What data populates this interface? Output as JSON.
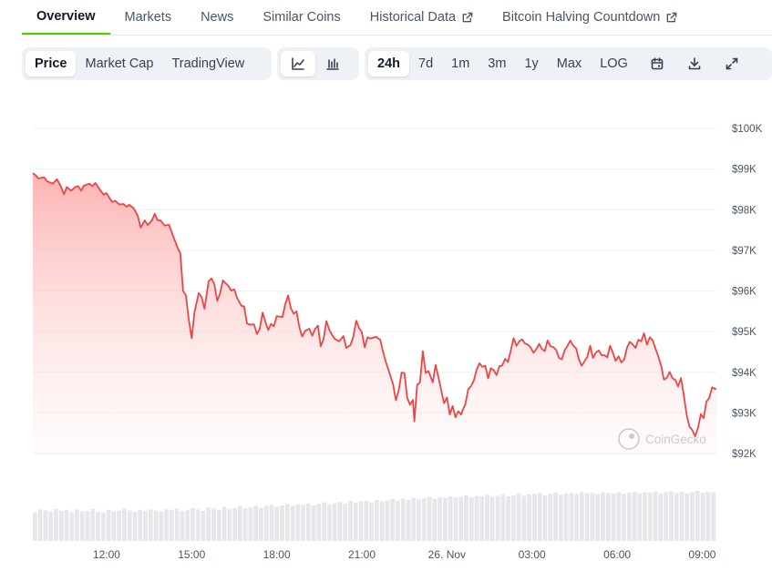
{
  "tabs": [
    {
      "label": "Overview",
      "active": true,
      "external": false
    },
    {
      "label": "Markets",
      "active": false,
      "external": false
    },
    {
      "label": "News",
      "active": false,
      "external": false
    },
    {
      "label": "Similar Coins",
      "active": false,
      "external": false
    },
    {
      "label": "Historical Data",
      "active": false,
      "external": true
    },
    {
      "label": "Bitcoin Halving Countdown",
      "active": false,
      "external": true
    }
  ],
  "toolbar": {
    "metric_buttons": [
      {
        "label": "Price",
        "active": true
      },
      {
        "label": "Market Cap",
        "active": false
      },
      {
        "label": "TradingView",
        "active": false
      }
    ],
    "chart_type_icons": [
      "line-chart-icon",
      "candlestick-chart-icon"
    ],
    "active_chart_type": "line-chart-icon",
    "range_buttons": [
      {
        "label": "24h",
        "active": true
      },
      {
        "label": "7d",
        "active": false
      },
      {
        "label": "1m",
        "active": false
      },
      {
        "label": "3m",
        "active": false
      },
      {
        "label": "1y",
        "active": false
      },
      {
        "label": "Max",
        "active": false
      },
      {
        "label": "LOG",
        "active": false
      }
    ],
    "action_icons": [
      "calendar-icon",
      "download-icon",
      "expand-icon"
    ]
  },
  "watermark": "CoinGecko",
  "colors": {
    "accent": "#4bcc00",
    "line": "#ef4444",
    "area": "#fecaca",
    "volume": "#e5e7eb"
  },
  "chart_data": {
    "type": "area",
    "title": "",
    "xlabel": "",
    "ylabel": "",
    "ylim": [
      91900,
      100200
    ],
    "y_ticks": [
      92000,
      93000,
      94000,
      95000,
      96000,
      97000,
      98000,
      99000,
      100000
    ],
    "y_tick_labels": [
      "$92K",
      "$93K",
      "$94K",
      "$95K",
      "$96K",
      "$97K",
      "$98K",
      "$99K",
      "$100K"
    ],
    "x_range": [
      9.4,
      33.5
    ],
    "x_ticks": [
      12,
      15,
      18,
      21,
      24,
      27,
      30,
      33
    ],
    "x_tick_labels": [
      "12:00",
      "15:00",
      "18:00",
      "21:00",
      "26. Nov",
      "03:00",
      "06:00",
      "09:00"
    ],
    "y_axis_position": "right",
    "grid": true,
    "series": [
      {
        "values": [
          [
            9.4,
            98900
          ],
          [
            9.5,
            98850
          ],
          [
            9.6,
            98770
          ],
          [
            9.8,
            98800
          ],
          [
            9.9,
            98700
          ],
          [
            10.1,
            98640
          ],
          [
            10.25,
            98750
          ],
          [
            10.4,
            98560
          ],
          [
            10.5,
            98380
          ],
          [
            10.6,
            98560
          ],
          [
            10.75,
            98470
          ],
          [
            10.9,
            98560
          ],
          [
            11.0,
            98580
          ],
          [
            11.1,
            98470
          ],
          [
            11.2,
            98590
          ],
          [
            11.4,
            98640
          ],
          [
            11.5,
            98580
          ],
          [
            11.6,
            98660
          ],
          [
            11.8,
            98460
          ],
          [
            11.9,
            98370
          ],
          [
            12.0,
            98410
          ],
          [
            12.1,
            98290
          ],
          [
            12.2,
            98190
          ],
          [
            12.3,
            98220
          ],
          [
            12.45,
            98130
          ],
          [
            12.6,
            98140
          ],
          [
            12.7,
            98070
          ],
          [
            12.8,
            98120
          ],
          [
            12.95,
            98040
          ],
          [
            13.1,
            97850
          ],
          [
            13.2,
            97560
          ],
          [
            13.35,
            97740
          ],
          [
            13.45,
            97620
          ],
          [
            13.6,
            97740
          ],
          [
            13.7,
            97900
          ],
          [
            13.8,
            97740
          ],
          [
            13.9,
            97740
          ],
          [
            14.05,
            97610
          ],
          [
            14.2,
            97630
          ],
          [
            14.3,
            97440
          ],
          [
            14.5,
            97070
          ],
          [
            14.6,
            96930
          ],
          [
            14.7,
            96000
          ],
          [
            14.8,
            95890
          ],
          [
            14.9,
            95280
          ],
          [
            15.0,
            94840
          ],
          [
            15.1,
            95480
          ],
          [
            15.25,
            95950
          ],
          [
            15.35,
            95850
          ],
          [
            15.45,
            95560
          ],
          [
            15.6,
            96240
          ],
          [
            15.7,
            96310
          ],
          [
            15.8,
            96160
          ],
          [
            15.9,
            95760
          ],
          [
            16.0,
            95940
          ],
          [
            16.1,
            96260
          ],
          [
            16.3,
            96120
          ],
          [
            16.4,
            96010
          ],
          [
            16.5,
            96040
          ],
          [
            16.6,
            95830
          ],
          [
            16.75,
            95640
          ],
          [
            16.85,
            95620
          ],
          [
            16.95,
            95200
          ],
          [
            17.05,
            95170
          ],
          [
            17.2,
            95180
          ],
          [
            17.3,
            94940
          ],
          [
            17.4,
            95070
          ],
          [
            17.5,
            95470
          ],
          [
            17.6,
            95240
          ],
          [
            17.7,
            95040
          ],
          [
            17.8,
            95190
          ],
          [
            17.9,
            95130
          ],
          [
            18.0,
            95380
          ],
          [
            18.2,
            95360
          ],
          [
            18.3,
            95680
          ],
          [
            18.4,
            95890
          ],
          [
            18.5,
            95570
          ],
          [
            18.6,
            95440
          ],
          [
            18.7,
            95500
          ],
          [
            18.8,
            95100
          ],
          [
            18.9,
            94880
          ],
          [
            19.0,
            95020
          ],
          [
            19.15,
            95070
          ],
          [
            19.25,
            94900
          ],
          [
            19.35,
            95060
          ],
          [
            19.45,
            95150
          ],
          [
            19.55,
            94640
          ],
          [
            19.65,
            94820
          ],
          [
            19.75,
            95260
          ],
          [
            19.85,
            95050
          ],
          [
            19.95,
            94920
          ],
          [
            20.05,
            94820
          ],
          [
            20.2,
            94760
          ],
          [
            20.35,
            94890
          ],
          [
            20.45,
            94600
          ],
          [
            20.6,
            94670
          ],
          [
            20.7,
            94880
          ],
          [
            20.8,
            95270
          ],
          [
            20.9,
            95090
          ],
          [
            21.0,
            94990
          ],
          [
            21.1,
            94610
          ],
          [
            21.2,
            94860
          ],
          [
            21.3,
            94830
          ],
          [
            21.5,
            94870
          ],
          [
            21.65,
            94800
          ],
          [
            21.75,
            94500
          ],
          [
            21.85,
            94250
          ],
          [
            21.95,
            94030
          ],
          [
            22.1,
            93710
          ],
          [
            22.2,
            93310
          ],
          [
            22.3,
            93560
          ],
          [
            22.4,
            93990
          ],
          [
            22.5,
            93980
          ],
          [
            22.6,
            93370
          ],
          [
            22.7,
            93200
          ],
          [
            22.8,
            93320
          ],
          [
            22.85,
            92790
          ],
          [
            22.95,
            93690
          ],
          [
            23.05,
            93750
          ],
          [
            23.15,
            94520
          ],
          [
            23.25,
            93980
          ],
          [
            23.35,
            94030
          ],
          [
            23.5,
            93750
          ],
          [
            23.6,
            94180
          ],
          [
            23.7,
            93880
          ],
          [
            23.8,
            93550
          ],
          [
            23.9,
            93240
          ],
          [
            24.0,
            93380
          ],
          [
            24.1,
            92960
          ],
          [
            24.2,
            93170
          ],
          [
            24.3,
            92890
          ],
          [
            24.4,
            93040
          ],
          [
            24.5,
            92960
          ],
          [
            24.55,
            93060
          ],
          [
            24.65,
            93220
          ],
          [
            24.75,
            93580
          ],
          [
            24.85,
            93660
          ],
          [
            24.95,
            93800
          ],
          [
            25.05,
            94070
          ],
          [
            25.15,
            94220
          ],
          [
            25.25,
            94130
          ],
          [
            25.35,
            94160
          ],
          [
            25.45,
            93850
          ],
          [
            25.55,
            94100
          ],
          [
            25.65,
            94050
          ],
          [
            25.75,
            93930
          ],
          [
            25.85,
            94150
          ],
          [
            25.95,
            94170
          ],
          [
            26.05,
            94330
          ],
          [
            26.15,
            94250
          ],
          [
            26.25,
            94540
          ],
          [
            26.35,
            94840
          ],
          [
            26.45,
            94650
          ],
          [
            26.55,
            94760
          ],
          [
            26.65,
            94810
          ],
          [
            26.75,
            94710
          ],
          [
            26.85,
            94680
          ],
          [
            26.95,
            94610
          ],
          [
            27.05,
            94480
          ],
          [
            27.15,
            94570
          ],
          [
            27.25,
            94700
          ],
          [
            27.35,
            94570
          ],
          [
            27.45,
            94520
          ],
          [
            27.55,
            94780
          ],
          [
            27.65,
            94640
          ],
          [
            27.75,
            94620
          ],
          [
            27.85,
            94550
          ],
          [
            27.95,
            94350
          ],
          [
            28.05,
            94320
          ],
          [
            28.15,
            94540
          ],
          [
            28.25,
            94650
          ],
          [
            28.35,
            94780
          ],
          [
            28.45,
            94660
          ],
          [
            28.55,
            94590
          ],
          [
            28.65,
            94320
          ],
          [
            28.75,
            94160
          ],
          [
            28.85,
            94270
          ],
          [
            28.95,
            94380
          ],
          [
            29.05,
            94650
          ],
          [
            29.15,
            94350
          ],
          [
            29.25,
            94480
          ],
          [
            29.35,
            94540
          ],
          [
            29.45,
            94420
          ],
          [
            29.55,
            94420
          ],
          [
            29.65,
            94370
          ],
          [
            29.75,
            94650
          ],
          [
            29.85,
            94480
          ],
          [
            29.95,
            94280
          ],
          [
            30.05,
            94390
          ],
          [
            30.15,
            94240
          ],
          [
            30.25,
            94320
          ],
          [
            30.35,
            94610
          ],
          [
            30.45,
            94750
          ],
          [
            30.55,
            94680
          ],
          [
            30.65,
            94600
          ],
          [
            30.75,
            94800
          ],
          [
            30.85,
            94760
          ],
          [
            30.95,
            94960
          ],
          [
            31.05,
            94680
          ],
          [
            31.15,
            94860
          ],
          [
            31.25,
            94790
          ],
          [
            31.35,
            94590
          ],
          [
            31.45,
            94390
          ],
          [
            31.55,
            94170
          ],
          [
            31.65,
            93820
          ],
          [
            31.75,
            93860
          ],
          [
            31.85,
            94010
          ],
          [
            31.95,
            93850
          ],
          [
            32.05,
            93810
          ],
          [
            32.15,
            93650
          ],
          [
            32.25,
            93860
          ],
          [
            32.35,
            93440
          ],
          [
            32.45,
            92960
          ],
          [
            32.55,
            92660
          ],
          [
            32.65,
            92580
          ],
          [
            32.75,
            92420
          ],
          [
            32.85,
            92630
          ],
          [
            32.95,
            92970
          ],
          [
            33.05,
            92870
          ],
          [
            33.15,
            93280
          ],
          [
            33.25,
            93370
          ],
          [
            33.35,
            93630
          ],
          [
            33.45,
            93590
          ],
          [
            33.5,
            93600
          ]
        ]
      }
    ],
    "volume_values": [
      0.57,
      0.63,
      0.61,
      0.58,
      0.64,
      0.6,
      0.62,
      0.57,
      0.63,
      0.59,
      0.6,
      0.64,
      0.58,
      0.56,
      0.62,
      0.59,
      0.6,
      0.65,
      0.61,
      0.58,
      0.62,
      0.6,
      0.63,
      0.61,
      0.59,
      0.63,
      0.62,
      0.65,
      0.6,
      0.62,
      0.66,
      0.63,
      0.6,
      0.67,
      0.65,
      0.62,
      0.68,
      0.64,
      0.66,
      0.7,
      0.65,
      0.67,
      0.71,
      0.66,
      0.7,
      0.72,
      0.68,
      0.71,
      0.74,
      0.7,
      0.73,
      0.72,
      0.75,
      0.71,
      0.74,
      0.77,
      0.72,
      0.75,
      0.78,
      0.74,
      0.8,
      0.76,
      0.79,
      0.8,
      0.77,
      0.82,
      0.79,
      0.81,
      0.84,
      0.8,
      0.85,
      0.82,
      0.86,
      0.83,
      0.85,
      0.88,
      0.84,
      0.87,
      0.86,
      0.89,
      0.87,
      0.88,
      0.91,
      0.87,
      0.9,
      0.89,
      0.92,
      0.88,
      0.9,
      0.93,
      0.89,
      0.91,
      0.95,
      0.9,
      0.93,
      0.94,
      0.96,
      0.91,
      0.94,
      0.97,
      0.93,
      0.95,
      0.96,
      0.94,
      0.97,
      0.95,
      0.96,
      0.94,
      0.97,
      0.96,
      0.95,
      0.97,
      0.94,
      0.96,
      0.98,
      0.95,
      0.97,
      0.96,
      0.98,
      0.95,
      0.97,
      0.99,
      0.96,
      0.98,
      0.95,
      0.97,
      1.0,
      0.96,
      0.98,
      0.97
    ]
  }
}
